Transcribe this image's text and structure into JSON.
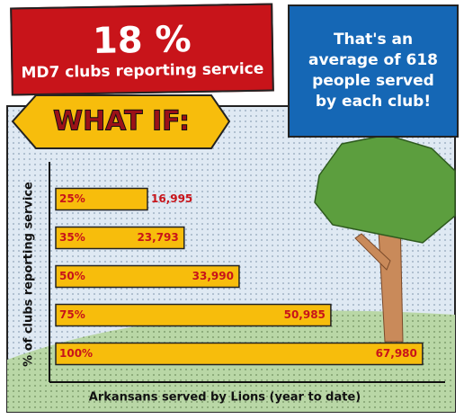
{
  "chart_data": {
    "type": "bar",
    "orientation": "horizontal",
    "title": "18 %",
    "subtitle": "MD7 clubs reporting service",
    "annotations": [
      "That's an average of 618 people served by each club!",
      "WHAT IF:"
    ],
    "y_label": "% of clubs reporting service",
    "x_label": "Arkansans served by Lions (year to date)",
    "categories": [
      "25%",
      "35%",
      "50%",
      "75%",
      "100%"
    ],
    "values": [
      16995,
      23793,
      33990,
      50985,
      67980
    ],
    "value_labels": [
      "16,995",
      "23,793",
      "33,990",
      "50,985",
      "67,980"
    ],
    "color": "#f7bd0c",
    "label_color": "#c8141a",
    "xlim": [
      0,
      70000
    ]
  }
}
